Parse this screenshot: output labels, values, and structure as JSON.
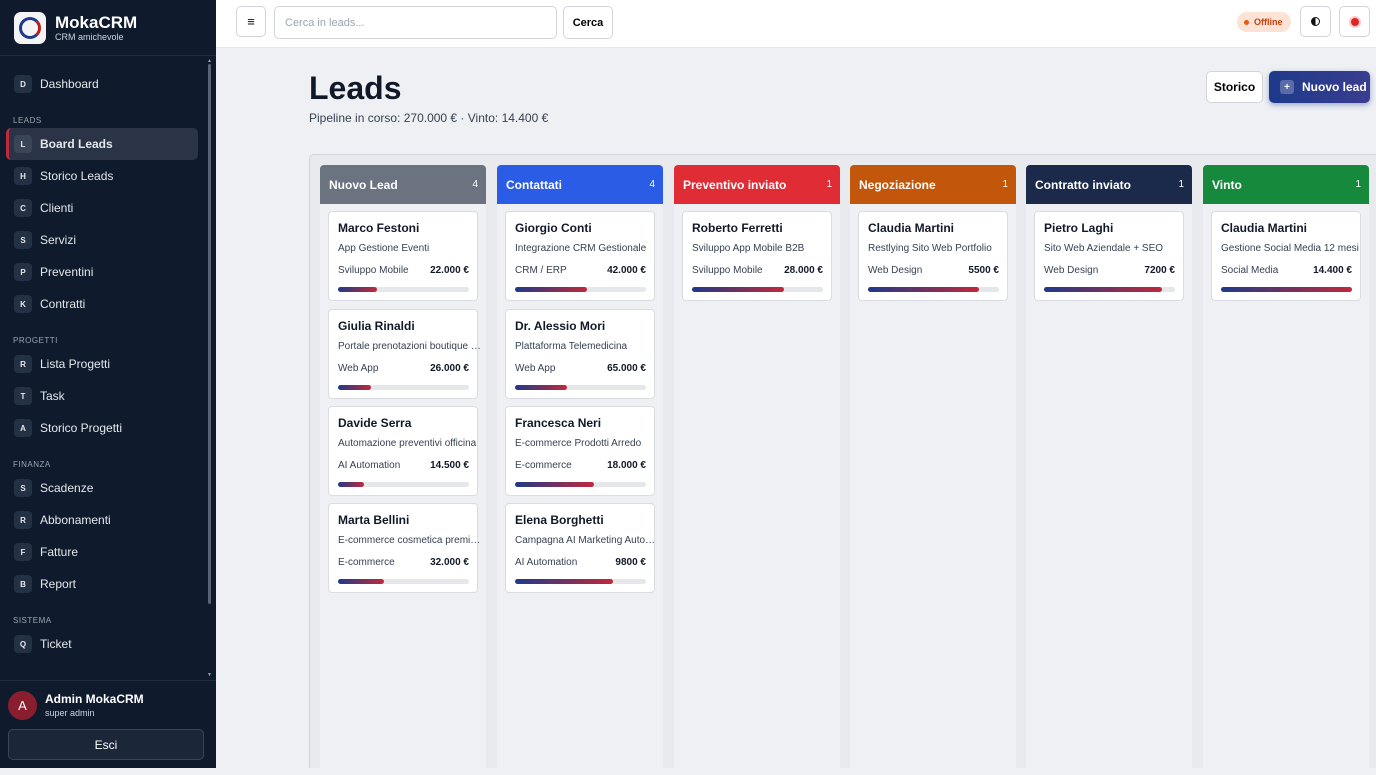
{
  "brand": {
    "name": "MokaCRM",
    "subtitle": "CRM amichevole"
  },
  "sidebar": {
    "dashboard": {
      "badge": "D",
      "label": "Dashboard"
    },
    "sections": {
      "leads": {
        "title": "LEADS",
        "items": [
          {
            "badge": "L",
            "label": "Board Leads"
          },
          {
            "badge": "H",
            "label": "Storico Leads"
          },
          {
            "badge": "C",
            "label": "Clienti"
          },
          {
            "badge": "S",
            "label": "Servizi"
          },
          {
            "badge": "P",
            "label": "Preventini"
          },
          {
            "badge": "K",
            "label": "Contratti"
          }
        ]
      },
      "progetti": {
        "title": "PROGETTI",
        "items": [
          {
            "badge": "R",
            "label": "Lista Progetti"
          },
          {
            "badge": "T",
            "label": "Task"
          },
          {
            "badge": "A",
            "label": "Storico Progetti"
          }
        ]
      },
      "finanza": {
        "title": "FINANZA",
        "items": [
          {
            "badge": "S",
            "label": "Scadenze"
          },
          {
            "badge": "R",
            "label": "Abbonamenti"
          },
          {
            "badge": "F",
            "label": "Fatture"
          },
          {
            "badge": "B",
            "label": "Report"
          }
        ]
      },
      "sistema": {
        "title": "SISTEMA",
        "items": [
          {
            "badge": "Q",
            "label": "Ticket"
          }
        ]
      }
    }
  },
  "user": {
    "initial": "A",
    "name": "Admin MokaCRM",
    "role": "super admin",
    "logout_label": "Esci"
  },
  "topbar": {
    "menu_icon": "≡",
    "search_placeholder": "Cerca in leads...",
    "search_label": "Cerca",
    "status": "Offline",
    "status_color": "#ea580c"
  },
  "page": {
    "title": "Leads",
    "subtitle": "Pipeline in corso: 270.000 € · Vinto: 14.400 €",
    "history_label": "Storico",
    "new_label": "Nuovo lead",
    "new_icon": "+"
  },
  "columns": [
    {
      "title": "Nuovo Lead",
      "count": "4",
      "color": "#6b7280",
      "cards": [
        {
          "name": "Marco Festoni",
          "desc": "App Gestione Eventi",
          "cat": "Sviluppo Mobile",
          "value": "22.000 €",
          "progress": 0.3
        },
        {
          "name": "Giulia Rinaldi",
          "desc": "Portale prenotazioni boutique …",
          "cat": "Web App",
          "value": "26.000 €",
          "progress": 0.25
        },
        {
          "name": "Davide Serra",
          "desc": "Automazione preventivi officina",
          "cat": "AI Automation",
          "value": "14.500 €",
          "progress": 0.2
        },
        {
          "name": "Marta Bellini",
          "desc": "E-commerce cosmetica premi…",
          "cat": "E-commerce",
          "value": "32.000 €",
          "progress": 0.35
        }
      ]
    },
    {
      "title": "Contattati",
      "count": "4",
      "color": "#2b5ce6",
      "cards": [
        {
          "name": "Giorgio Conti",
          "desc": "Integrazione CRM Gestionale",
          "cat": "CRM / ERP",
          "value": "42.000 €",
          "progress": 0.55
        },
        {
          "name": "Dr. Alessio Mori",
          "desc": "Plattaforma Telemedicina",
          "cat": "Web App",
          "value": "65.000 €",
          "progress": 0.4
        },
        {
          "name": "Francesca Neri",
          "desc": "E-commerce Prodotti Arredo",
          "cat": "E-commerce",
          "value": "18.000 €",
          "progress": 0.6
        },
        {
          "name": "Elena Borghetti",
          "desc": "Campagna AI Marketing Auto…",
          "cat": "AI Automation",
          "value": "9800 €",
          "progress": 0.75
        }
      ]
    },
    {
      "title": "Preventivo inviato",
      "count": "1",
      "color": "#e02c35",
      "cards": [
        {
          "name": "Roberto Ferretti",
          "desc": "Sviluppo App Mobile B2B",
          "cat": "Sviluppo Mobile",
          "value": "28.000 €",
          "progress": 0.7
        }
      ]
    },
    {
      "title": "Negoziazione",
      "count": "1",
      "color": "#c2560b",
      "cards": [
        {
          "name": "Claudia Martini",
          "desc": "Restlying Sito Web Portfolio",
          "cat": "Web Design",
          "value": "5500 €",
          "progress": 0.85
        }
      ]
    },
    {
      "title": "Contratto inviato",
      "count": "1",
      "color": "#1b2a4a",
      "cards": [
        {
          "name": "Pietro Laghi",
          "desc": "Sito Web Aziendale + SEO",
          "cat": "Web Design",
          "value": "7200 €",
          "progress": 0.9
        }
      ]
    },
    {
      "title": "Vinto",
      "count": "1",
      "color": "#17893d",
      "cards": [
        {
          "name": "Claudia Martini",
          "desc": "Gestione Social Media 12 mesi",
          "cat": "Social Media",
          "value": "14.400 €",
          "progress": 1.0
        }
      ]
    }
  ]
}
